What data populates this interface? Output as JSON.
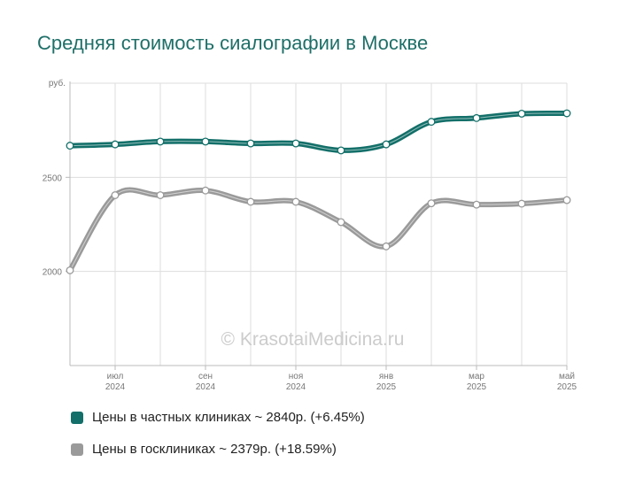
{
  "chart_data": {
    "type": "line",
    "title": "Средняя стоимость сиалографии в Москве",
    "y_unit_label": "руб.",
    "watermark": "© KrasotaiMedicina.ru",
    "x_ticks": [
      {
        "month": "июл",
        "year": "2024"
      },
      {
        "month": "сен",
        "year": "2024"
      },
      {
        "month": "ноя",
        "year": "2024"
      },
      {
        "month": "янв",
        "year": "2025"
      },
      {
        "month": "мар",
        "year": "2025"
      },
      {
        "month": "май",
        "year": "2025"
      }
    ],
    "y_ticks": [
      "2500",
      "2000"
    ],
    "categories": [
      "2024-06",
      "2024-07",
      "2024-08",
      "2024-09",
      "2024-10",
      "2024-11",
      "2024-12",
      "2025-01",
      "2025-02",
      "2025-03",
      "2025-04",
      "2025-05"
    ],
    "ylim": [
      1500,
      3000
    ],
    "grid": true,
    "series": [
      {
        "name": "Цены в частных клиниках ~ 2840р. (+6.45%)",
        "color": "#136f69",
        "values": [
          2668,
          2675,
          2690,
          2690,
          2680,
          2680,
          2643,
          2675,
          2795,
          2815,
          2838,
          2840
        ]
      },
      {
        "name": "Цены в госклиниках ~ 2379р. (+18.59%)",
        "color": "#9a9a9a",
        "values": [
          2006,
          2405,
          2405,
          2430,
          2370,
          2370,
          2262,
          2133,
          2362,
          2355,
          2360,
          2379
        ]
      }
    ]
  }
}
